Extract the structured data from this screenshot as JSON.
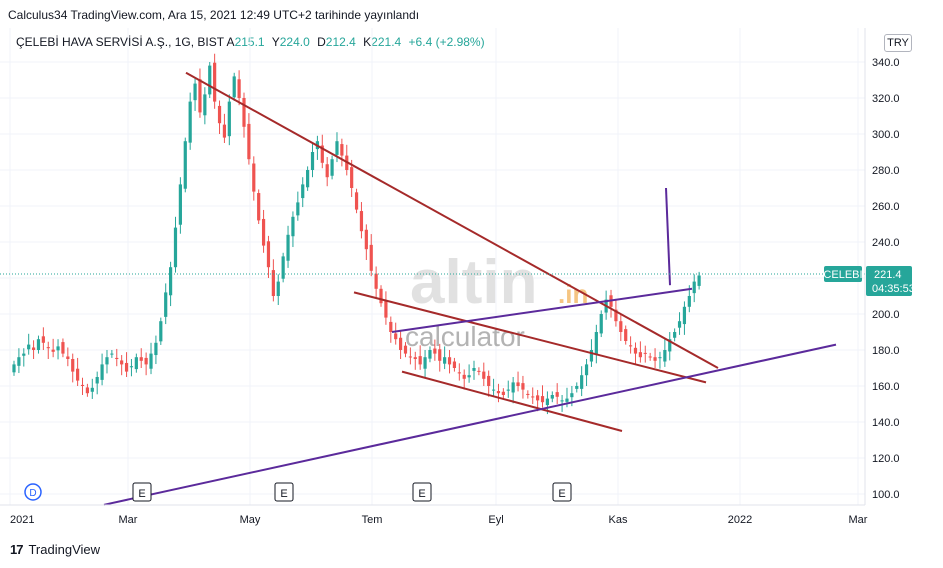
{
  "header": {
    "publish_line": "Calculus34 TradingView.com, Ara 15, 2021 12:49 UTC+2 tarihinde yayınlandı"
  },
  "symbol": {
    "name": "ÇELEBİ HAVA SERVİSİ A.Ş., 1G, BIST",
    "open_label": "A",
    "open": "215.1",
    "high_label": "Y",
    "high": "224.0",
    "low_label": "D",
    "low": "212.4",
    "close_label": "K",
    "close": "221.4",
    "change": "+6.4 (+2.98%)"
  },
  "currency": "TRY",
  "price_tag": {
    "ticker": "CELEBI",
    "price": "221.4",
    "countdown": "04:35:53"
  },
  "watermark": {
    "main": "altin",
    "suffix": ".in",
    "sub": "calculator"
  },
  "footer": {
    "brand": "TradingView",
    "logo": "17"
  },
  "colors": {
    "up": "#26a69a",
    "down": "#ef5350",
    "trend_red": "#a52a2a",
    "trend_purple": "#5b2a9b",
    "grid": "#f0f3fa",
    "tag_bg": "#26a69a"
  },
  "chart_data": {
    "type": "candlestick",
    "x_tick_labels": [
      "2021",
      "Mar",
      "May",
      "Tem",
      "Eyl",
      "Kas",
      "2022",
      "Mar"
    ],
    "x_ticks_days": [
      0,
      59,
      120,
      181,
      243,
      304,
      365,
      424
    ],
    "y_ticks": [
      "340.0",
      "320.0",
      "300.0",
      "280.0",
      "260.0",
      "240.0",
      "220.0",
      "200.0",
      "180.0",
      "160.0",
      "140.0",
      "120.0",
      "100.0"
    ],
    "ylim": [
      94,
      350
    ],
    "event_markers": {
      "label": "E",
      "days": [
        66,
        137,
        206,
        276
      ]
    },
    "dividend_marker": {
      "label": "D",
      "day": 3
    },
    "last_price": 221.4,
    "series_closes": [
      172,
      176,
      178,
      183,
      180,
      186,
      184,
      181,
      179,
      182,
      178,
      175,
      168,
      163,
      160,
      156,
      159,
      165,
      172,
      176,
      178,
      175,
      172,
      168,
      171,
      176,
      174,
      172,
      178,
      184,
      196,
      212,
      226,
      248,
      272,
      296,
      318,
      328,
      312,
      322,
      338,
      318,
      306,
      298,
      318,
      332,
      320,
      304,
      286,
      268,
      252,
      238,
      226,
      210,
      218,
      232,
      244,
      254,
      262,
      272,
      280,
      290,
      296,
      284,
      276,
      286,
      296,
      288,
      280,
      270,
      258,
      246,
      236,
      224,
      214,
      206,
      198,
      190,
      186,
      180,
      178,
      176,
      175,
      172,
      176,
      180,
      178,
      174,
      176,
      172,
      170,
      167,
      164,
      166,
      170,
      168,
      164,
      160,
      158,
      156,
      155,
      158,
      162,
      160,
      158,
      155,
      154,
      152,
      151,
      153,
      155,
      154,
      152,
      153,
      156,
      160,
      166,
      172,
      180,
      190,
      200,
      208,
      204,
      196,
      190,
      185,
      182,
      178,
      176,
      178,
      176,
      174,
      176,
      180,
      186,
      190,
      196,
      204,
      210,
      218,
      221.4
    ],
    "trendlines": [
      {
        "color": "trend_red",
        "from": [
          88,
          334
        ],
        "to": [
          354,
          170
        ]
      },
      {
        "color": "trend_red",
        "from": [
          172,
          212
        ],
        "to": [
          348,
          162
        ]
      },
      {
        "color": "trend_red",
        "from": [
          196,
          168
        ],
        "to": [
          306,
          135
        ]
      },
      {
        "color": "trend_purple",
        "from": [
          47,
          94
        ],
        "to": [
          413,
          183
        ]
      },
      {
        "color": "trend_purple",
        "from": [
          191,
          190
        ],
        "to": [
          341,
          214
        ]
      },
      {
        "color": "trend_purple",
        "from": [
          328,
          270
        ],
        "to": [
          330,
          216
        ]
      }
    ]
  }
}
